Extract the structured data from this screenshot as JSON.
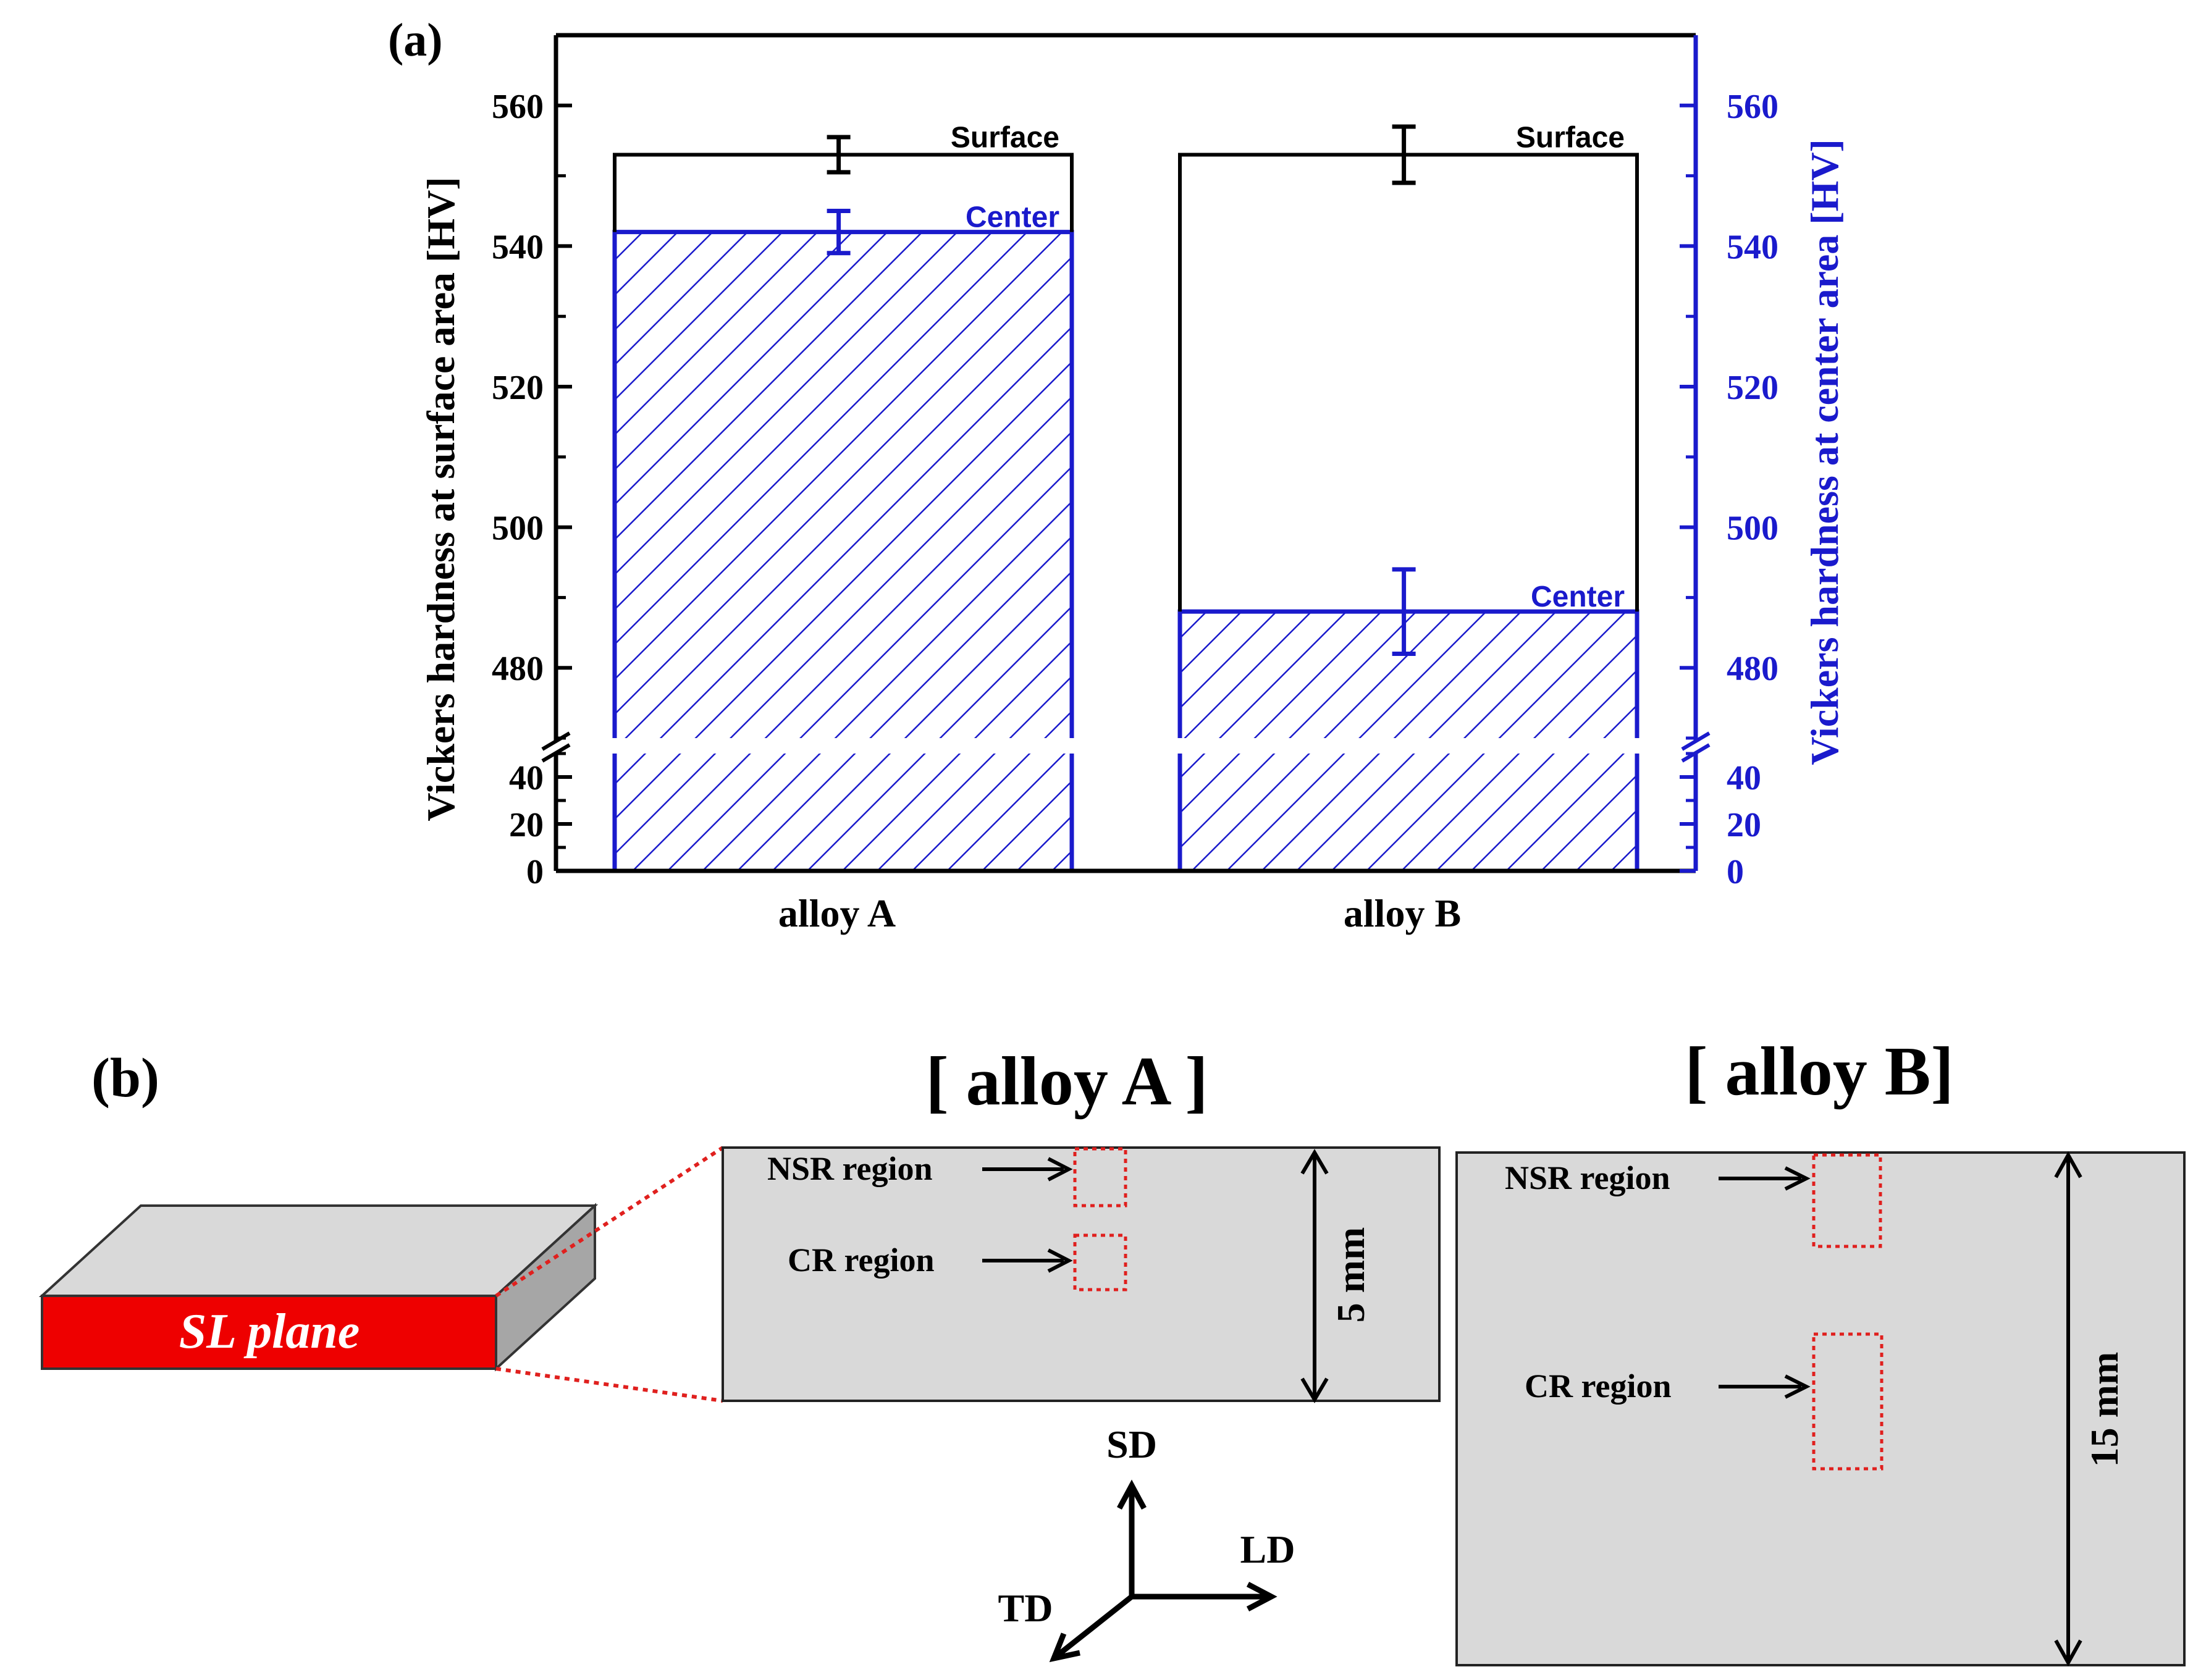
{
  "panel_a": {
    "label": "(a)"
  },
  "panel_b": {
    "label": "(b)",
    "plane_label": "SL plane",
    "alloy_a": {
      "title": "[ alloy A ]",
      "nsr_label": "NSR region",
      "cr_label": "CR region",
      "dimension": "5 mm"
    },
    "alloy_b": {
      "title": "[ alloy B]",
      "nsr_label": "NSR region",
      "cr_label": "CR region",
      "dimension": "15 mm"
    },
    "axes": {
      "sd": "SD",
      "ld": "LD",
      "td": "TD"
    }
  },
  "colors": {
    "surface": "#000000",
    "center": "#1a1acc",
    "plane": "#ee0000",
    "sample_fill": "#d9d9d9",
    "region_outline": "#e0201e"
  },
  "chart_data": {
    "type": "bar",
    "title": "",
    "categories": [
      "alloy A",
      "alloy B"
    ],
    "series": [
      {
        "name": "Surface",
        "axis": "left",
        "values": [
          553,
          553
        ],
        "errors": [
          2.5,
          4
        ],
        "label": "Surface"
      },
      {
        "name": "Center",
        "axis": "right",
        "values": [
          542,
          488
        ],
        "errors": [
          3,
          6
        ],
        "label": "Center"
      }
    ],
    "ylabel": "Vickers hardness at surface area [HV]",
    "y2label": "Vickers hardness at center area [HV]",
    "y_upper_range": [
      470,
      570
    ],
    "y_lower_range": [
      0,
      50
    ],
    "y_break": true,
    "upper_ticks": [
      "480",
      "500",
      "520",
      "540",
      "560"
    ],
    "lower_ticks": [
      "0",
      "20",
      "40"
    ]
  }
}
